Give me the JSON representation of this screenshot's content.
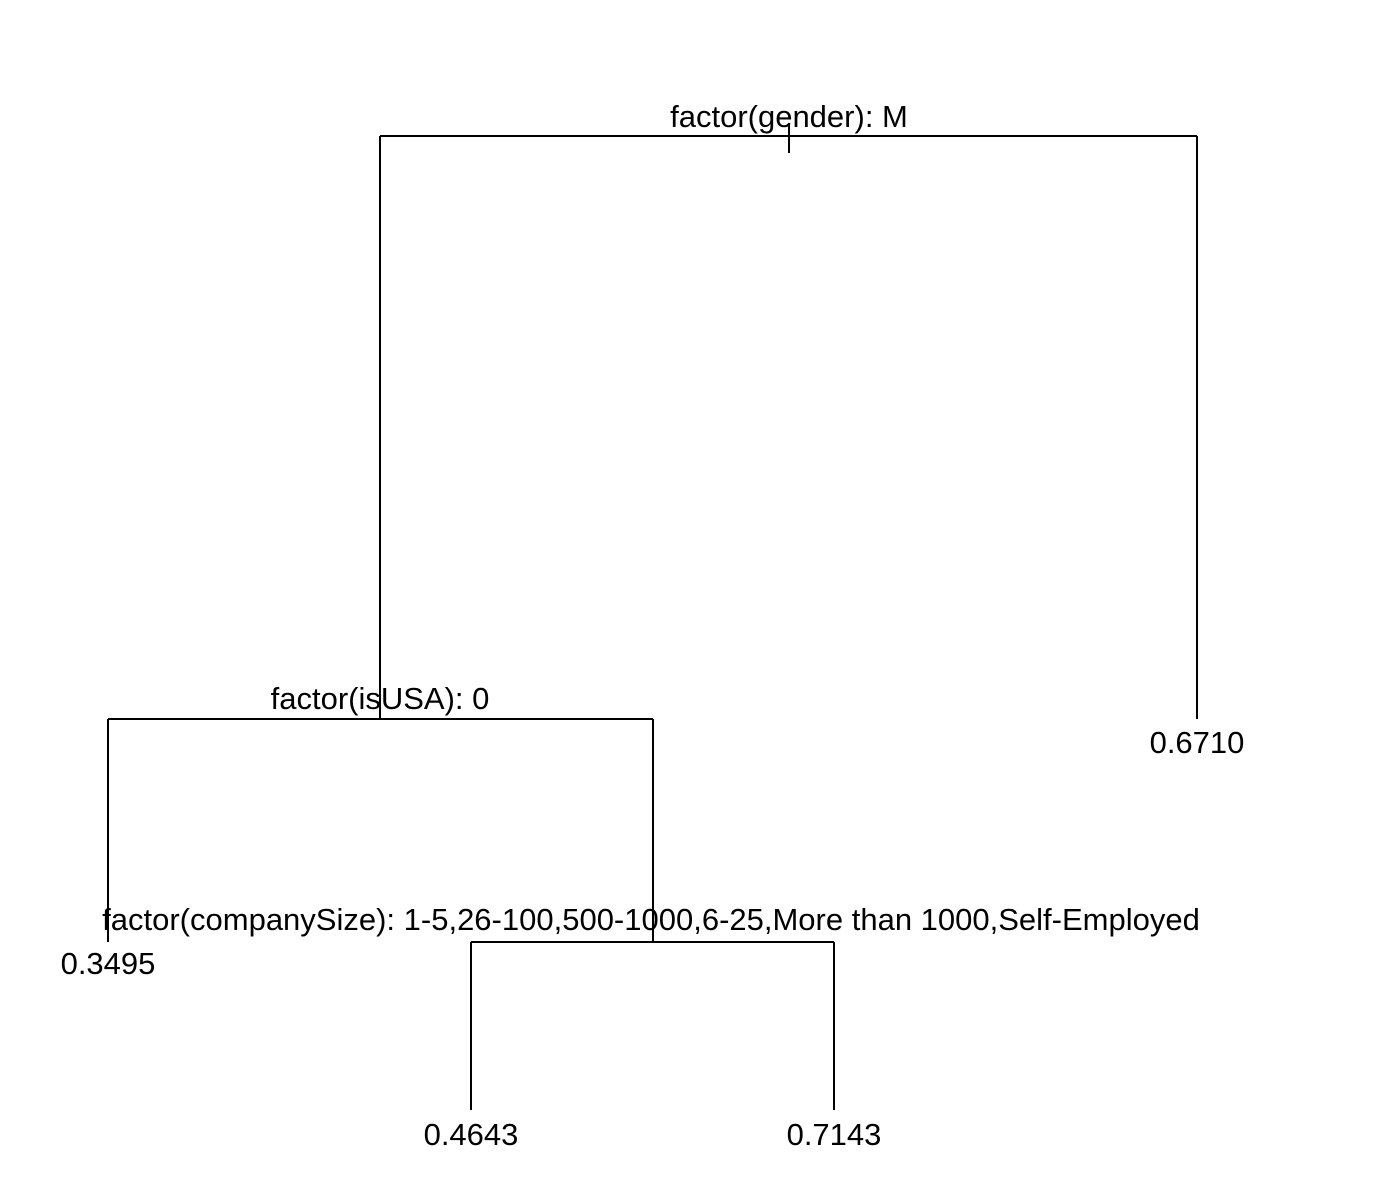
{
  "tree": {
    "root_split": "factor(gender): M",
    "left_split": "factor(isUSA): 0",
    "inner_split": "factor(companySize): 1-5,26-100,500-1000,6-25,More than 1000,Self-Employed",
    "leaves": {
      "usa_zero": "0.3495",
      "company_size_left": "0.4643",
      "company_size_right": "0.7143",
      "gender_right": "0.6710"
    }
  },
  "colors": {
    "line": "#000000",
    "text": "#000000",
    "background": "#ffffff"
  }
}
